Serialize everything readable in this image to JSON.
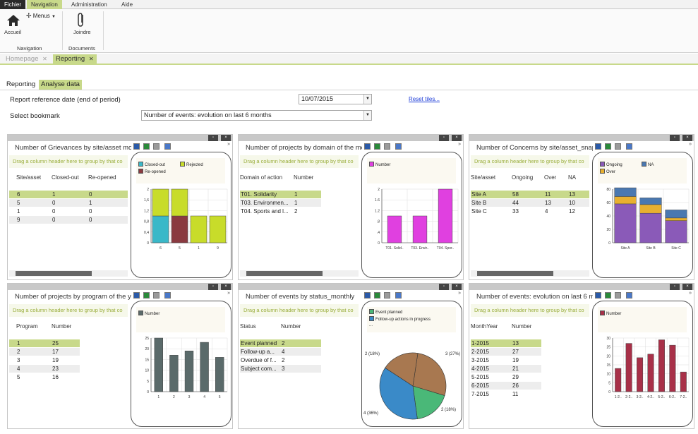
{
  "menu": {
    "tabs": [
      "Fichier",
      "Navigation",
      "Administration",
      "Aide"
    ]
  },
  "ribbon": {
    "home": "Accueil",
    "menus": "Menus",
    "join": "Joindre",
    "group_navigation": "Navigation",
    "group_documents": "Documents"
  },
  "doc_tabs": {
    "homepage": "Homepage",
    "reporting": "Reporting",
    "close_glyph": "✕"
  },
  "sub_tabs": {
    "reporting": "Reporting",
    "analyse": "Analyse data"
  },
  "filters": {
    "report_date_label": "Report reference date (end of period)",
    "report_date_value": "10/07/2015",
    "reset_tiles": "Reset tiles...",
    "bookmark_label": "Select bookmark",
    "bookmark_value": "Number of events: evolution on last 6 months"
  },
  "common": {
    "group_hint": "Drag a column header here to group by that co",
    "more": "»",
    "maximize": "▫",
    "close": "×"
  },
  "tiles": [
    {
      "title": "Number of Grievances by site/asset mon",
      "columns": [
        "Site/asset",
        "Closed-out",
        "Re-opened"
      ],
      "rows": [
        [
          "6",
          "1",
          "0"
        ],
        [
          "5",
          "0",
          "1"
        ],
        [
          "1",
          "0",
          "0"
        ],
        [
          "9",
          "0",
          "0"
        ]
      ],
      "selected_row": 0,
      "legend": [
        "Closed-out",
        "Rejected",
        "Re-opened"
      ],
      "chart_data": {
        "type": "bar",
        "categories": [
          "6",
          "5",
          "1",
          "9"
        ],
        "series": [
          {
            "name": "Closed-out",
            "values": [
              1,
              0,
              0,
              0
            ],
            "color": "#3ab8c8"
          },
          {
            "name": "Re-opened",
            "values": [
              0,
              1,
              0,
              0
            ],
            "color": "#8a3a40"
          },
          {
            "name": "Rejected",
            "values": [
              1,
              1,
              1,
              1
            ],
            "color": "#c8dc2a"
          }
        ],
        "ylim": [
          0,
          2
        ],
        "yticks": [
          "0",
          "0,4",
          "0,8",
          "1,2",
          "1,6",
          "2"
        ]
      }
    },
    {
      "title": "Number of projects by domain of the mo",
      "columns": [
        "Domain of action",
        "Number"
      ],
      "rows": [
        [
          "T01. Solidarity",
          "1"
        ],
        [
          "T03.  Environmen...",
          "1"
        ],
        [
          "T04.  Sports and l...",
          "2"
        ]
      ],
      "selected_row": 0,
      "legend": [
        "Number"
      ],
      "chart_data": {
        "type": "bar",
        "categories": [
          "T01. Solid..",
          "T03. Envir..",
          "T04. Spor.."
        ],
        "series": [
          {
            "name": "Number",
            "values": [
              1,
              1,
              2
            ],
            "color": "#e040e0"
          }
        ],
        "ylim": [
          0,
          2
        ],
        "yticks": [
          "0",
          ".4",
          ".8",
          "1.2",
          "1.6",
          "2"
        ]
      }
    },
    {
      "title": "Number of Concerns by site/asset_snaps",
      "columns": [
        "Site/asset",
        "Ongoing",
        "Over",
        "NA"
      ],
      "rows": [
        [
          "Site A",
          "58",
          "11",
          "13"
        ],
        [
          "Site B",
          "44",
          "13",
          "10"
        ],
        [
          "Site C",
          "33",
          "4",
          "12"
        ]
      ],
      "selected_row": 0,
      "legend": [
        "Ongoing",
        "NA",
        "Over"
      ],
      "chart_data": {
        "type": "bar",
        "categories": [
          "Site A",
          "Site B",
          "Site C"
        ],
        "series": [
          {
            "name": "Ongoing",
            "values": [
              58,
              44,
              33
            ],
            "color": "#8a5ab8"
          },
          {
            "name": "Over",
            "values": [
              11,
              13,
              4
            ],
            "color": "#e8b030"
          },
          {
            "name": "NA",
            "values": [
              13,
              10,
              12
            ],
            "color": "#4a78b0"
          }
        ],
        "ylim": [
          0,
          80
        ],
        "yticks": [
          "0",
          "20",
          "40",
          "60",
          "80"
        ]
      }
    },
    {
      "title": "Number of projects by program of the ye",
      "columns": [
        "Program",
        "Number"
      ],
      "rows": [
        [
          "1",
          "25"
        ],
        [
          "2",
          "17"
        ],
        [
          "3",
          "19"
        ],
        [
          "4",
          "23"
        ],
        [
          "5",
          "16"
        ]
      ],
      "selected_row": 0,
      "legend": [
        "Number"
      ],
      "chart_data": {
        "type": "bar",
        "categories": [
          "1",
          "2",
          "3",
          "4",
          "5"
        ],
        "series": [
          {
            "name": "Number",
            "values": [
              25,
              17,
              19,
              23,
              16
            ],
            "color": "#5a6a6a"
          }
        ],
        "ylim": [
          0,
          25
        ],
        "yticks": [
          "0",
          "5",
          "10",
          "15",
          "20",
          "25"
        ]
      }
    },
    {
      "title": "Number of events by status_monthly",
      "columns": [
        "Status",
        "Number"
      ],
      "rows": [
        [
          "Event planned",
          "2"
        ],
        [
          "Follow-up a...",
          "4"
        ],
        [
          "Overdue of f...",
          "2"
        ],
        [
          "Subject com...",
          "3"
        ]
      ],
      "selected_row": 0,
      "legend": [
        "Event planned",
        "Follow-up actions in progress",
        "..."
      ],
      "chart_data": {
        "type": "pie",
        "slices": [
          {
            "label": "3 (27%)",
            "value": 3,
            "color": "#a87850"
          },
          {
            "label": "2 (18%)",
            "value": 2,
            "color": "#4ab878"
          },
          {
            "label": "4 (36%)",
            "value": 4,
            "color": "#3a8ac8"
          },
          {
            "label": "2 (18%)",
            "value": 2,
            "color": "#a87850"
          }
        ]
      }
    },
    {
      "title": "Number of events: evolution on last 6 m",
      "columns": [
        "MonthYear",
        "Number"
      ],
      "rows": [
        [
          "1-2015",
          "13"
        ],
        [
          "2-2015",
          "27"
        ],
        [
          "3-2015",
          "19"
        ],
        [
          "4-2015",
          "21"
        ],
        [
          "5-2015",
          "29"
        ],
        [
          "6-2015",
          "26"
        ],
        [
          "7-2015",
          "11"
        ]
      ],
      "selected_row": 0,
      "legend": [
        "Number"
      ],
      "chart_data": {
        "type": "bar",
        "categories": [
          "1-2..",
          "2-2..",
          "3-2..",
          "4-2..",
          "5-2..",
          "6-2..",
          "7-2.."
        ],
        "series": [
          {
            "name": "Number",
            "values": [
              13,
              27,
              19,
              21,
              29,
              26,
              11
            ],
            "color": "#a83048"
          }
        ],
        "ylim": [
          0,
          30
        ],
        "yticks": [
          "0",
          "5",
          "10",
          "15",
          "20",
          "25",
          "30"
        ]
      }
    }
  ]
}
